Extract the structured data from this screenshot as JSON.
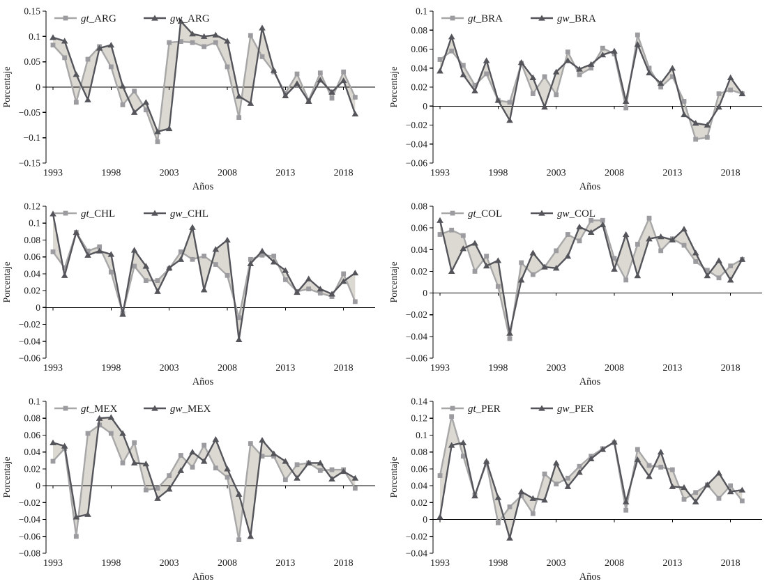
{
  "page": {
    "background": "#ffffff"
  },
  "colors": {
    "gt_line": "#a7a7a7",
    "gt_marker": "#9c9ca0",
    "gw_line": "#54555b",
    "gw_marker": "#54555b",
    "band_fill": "#dcd8d2",
    "axis": "#000000",
    "text": "#1a1a1a"
  },
  "years": [
    1993,
    1994,
    1995,
    1996,
    1997,
    1998,
    1999,
    2000,
    2001,
    2002,
    2003,
    2004,
    2005,
    2006,
    2007,
    2008,
    2009,
    2010,
    2011,
    2012,
    2013,
    2014,
    2015,
    2016,
    2017,
    2018,
    2019
  ],
  "chart_data": [
    {
      "type": "line",
      "panel": "ARG",
      "xlabel": "Años",
      "ylabel": "Porcentaje",
      "ylim": [
        -0.15,
        0.15
      ],
      "ytick_step": 0.05,
      "xticks": [
        1993,
        1998,
        2003,
        2008,
        2013,
        2018
      ],
      "grid": false,
      "legend_position": "top-left",
      "legend": [
        "gt_ARG",
        "gw_ARG"
      ],
      "series": [
        {
          "name": "gt_ARG",
          "marker": "square",
          "values": [
            0.083,
            0.058,
            -0.03,
            0.055,
            0.08,
            0.04,
            -0.035,
            -0.008,
            -0.045,
            -0.108,
            0.088,
            0.09,
            0.088,
            0.08,
            0.088,
            0.04,
            -0.06,
            0.102,
            0.06,
            0.03,
            -0.012,
            0.026,
            -0.026,
            0.028,
            -0.022,
            0.03,
            -0.02
          ]
        },
        {
          "name": "gw_ARG",
          "marker": "triangle",
          "values": [
            0.098,
            0.091,
            0.025,
            -0.025,
            0.077,
            0.083,
            0.002,
            -0.05,
            -0.03,
            -0.088,
            -0.082,
            0.13,
            0.105,
            0.1,
            0.103,
            0.091,
            -0.018,
            -0.032,
            0.117,
            0.033,
            -0.017,
            0.007,
            -0.028,
            0.014,
            -0.01,
            0.013,
            -0.053
          ]
        }
      ]
    },
    {
      "type": "line",
      "panel": "BRA",
      "xlabel": "Años",
      "ylabel": "Porcentaje",
      "ylim": [
        -0.06,
        0.1
      ],
      "ytick_step": 0.02,
      "xticks": [
        1993,
        1998,
        2003,
        2008,
        2013,
        2018
      ],
      "grid": false,
      "legend_position": "top-left",
      "legend": [
        "gt_BRA",
        "gw_BRA"
      ],
      "series": [
        {
          "name": "gt_BRA",
          "marker": "square",
          "values": [
            0.049,
            0.058,
            0.043,
            0.022,
            0.034,
            0.006,
            0.004,
            0.045,
            0.013,
            0.031,
            0.012,
            0.057,
            0.033,
            0.04,
            0.061,
            0.055,
            -0.002,
            0.075,
            0.04,
            0.02,
            0.031,
            0.005,
            -0.035,
            -0.033,
            0.013,
            0.017,
            0.013
          ]
        },
        {
          "name": "gw_BRA",
          "marker": "triangle",
          "values": [
            0.037,
            0.073,
            0.033,
            0.016,
            0.048,
            0.006,
            -0.015,
            0.046,
            0.03,
            -0.001,
            0.036,
            0.048,
            0.039,
            0.044,
            0.054,
            0.058,
            0.005,
            0.065,
            0.035,
            0.024,
            0.04,
            -0.009,
            -0.018,
            -0.02,
            -0.001,
            0.03,
            0.013
          ]
        }
      ]
    },
    {
      "type": "line",
      "panel": "CHL",
      "xlabel": "Años",
      "ylabel": "Porcentaje",
      "ylim": [
        -0.06,
        0.12
      ],
      "ytick_step": 0.02,
      "xticks": [
        1993,
        1998,
        2003,
        2008,
        2013,
        2018
      ],
      "grid": false,
      "legend_position": "top-left",
      "legend": [
        "gt_CHL",
        "gw_CHL"
      ],
      "series": [
        {
          "name": "gt_CHL",
          "marker": "square",
          "values": [
            0.066,
            0.047,
            0.089,
            0.067,
            0.072,
            0.042,
            -0.007,
            0.049,
            0.032,
            0.032,
            0.046,
            0.066,
            0.057,
            0.061,
            0.051,
            0.038,
            -0.012,
            0.057,
            0.062,
            0.061,
            0.033,
            0.019,
            0.022,
            0.017,
            0.013,
            0.04,
            0.007
          ]
        },
        {
          "name": "gw_CHL",
          "marker": "triangle",
          "values": [
            0.111,
            0.038,
            0.089,
            0.062,
            0.067,
            0.063,
            -0.008,
            0.068,
            0.049,
            0.019,
            0.047,
            0.057,
            0.095,
            0.021,
            0.069,
            0.08,
            -0.038,
            0.052,
            0.067,
            0.054,
            0.044,
            0.018,
            0.034,
            0.022,
            0.016,
            0.031,
            0.041
          ]
        }
      ]
    },
    {
      "type": "line",
      "panel": "COL",
      "xlabel": "Años",
      "ylabel": "Porcentaje",
      "ylim": [
        -0.06,
        0.08
      ],
      "ytick_step": 0.02,
      "xticks": [
        1993,
        1998,
        2003,
        2008,
        2013,
        2018
      ],
      "grid": false,
      "legend_position": "top-left",
      "legend": [
        "gt_COL",
        "gw_COL"
      ],
      "series": [
        {
          "name": "gt_COL",
          "marker": "square",
          "values": [
            0.054,
            0.058,
            0.053,
            0.02,
            0.034,
            0.006,
            -0.042,
            0.028,
            0.017,
            0.024,
            0.039,
            0.054,
            0.048,
            0.067,
            0.067,
            0.032,
            0.012,
            0.045,
            0.069,
            0.039,
            0.05,
            0.044,
            0.029,
            0.021,
            0.014,
            0.025,
            0.031
          ]
        },
        {
          "name": "gw_COL",
          "marker": "triangle",
          "values": [
            0.067,
            0.02,
            0.041,
            0.046,
            0.025,
            0.03,
            -0.037,
            0.012,
            0.037,
            0.024,
            0.023,
            0.034,
            0.061,
            0.056,
            0.063,
            0.022,
            0.054,
            0.016,
            0.05,
            0.052,
            0.049,
            0.059,
            0.037,
            0.016,
            0.03,
            0.012,
            0.031
          ]
        }
      ]
    },
    {
      "type": "line",
      "panel": "MEX",
      "xlabel": "Años",
      "ylabel": "Porcentaje",
      "ylim": [
        -0.08,
        0.1
      ],
      "ytick_step": 0.02,
      "xticks": [
        1993,
        1998,
        2003,
        2008,
        2013,
        2018
      ],
      "grid": false,
      "legend_position": "top-left",
      "legend": [
        "gt_MEX",
        "gw_MEX"
      ],
      "series": [
        {
          "name": "gt_MEX",
          "marker": "square",
          "values": [
            0.029,
            0.044,
            -0.06,
            0.062,
            0.072,
            0.062,
            0.027,
            0.051,
            -0.005,
            -0.003,
            0.012,
            0.036,
            0.022,
            0.048,
            0.021,
            0.01,
            -0.064,
            0.05,
            0.035,
            0.035,
            0.007,
            0.025,
            0.027,
            0.018,
            0.019,
            0.019,
            -0.003
          ]
        },
        {
          "name": "gw_MEX",
          "marker": "triangle",
          "values": [
            0.051,
            0.047,
            -0.037,
            -0.034,
            0.08,
            0.081,
            0.062,
            0.027,
            0.026,
            -0.015,
            -0.004,
            0.018,
            0.04,
            0.029,
            0.055,
            0.02,
            -0.01,
            -0.06,
            0.054,
            0.038,
            0.029,
            0.009,
            0.027,
            0.027,
            0.008,
            0.017,
            0.009
          ]
        }
      ]
    },
    {
      "type": "line",
      "panel": "PER",
      "xlabel": "Años",
      "ylabel": "Porcentaje",
      "ylim": [
        -0.04,
        0.14
      ],
      "ytick_step": 0.02,
      "xticks": [
        1993,
        1998,
        2003,
        2008,
        2013,
        2018
      ],
      "grid": false,
      "legend_position": "top-left",
      "legend": [
        "gt_PER",
        "gw_PER"
      ],
      "series": [
        {
          "name": "gt_PER",
          "marker": "square",
          "values": [
            0.052,
            0.122,
            0.075,
            0.029,
            0.067,
            -0.004,
            0.015,
            0.028,
            0.007,
            0.054,
            0.042,
            0.049,
            0.063,
            0.075,
            0.084,
            0.091,
            0.011,
            0.083,
            0.064,
            0.062,
            0.059,
            0.024,
            0.032,
            0.041,
            0.025,
            0.04,
            0.022
          ]
        },
        {
          "name": "gw_PER",
          "marker": "triangle",
          "values": [
            0.003,
            0.088,
            0.091,
            0.028,
            0.069,
            0.026,
            -0.022,
            0.033,
            0.025,
            0.023,
            0.067,
            0.039,
            0.056,
            0.072,
            0.083,
            0.092,
            0.021,
            0.071,
            0.051,
            0.08,
            0.039,
            0.038,
            0.021,
            0.041,
            0.055,
            0.033,
            0.035
          ]
        }
      ]
    }
  ]
}
